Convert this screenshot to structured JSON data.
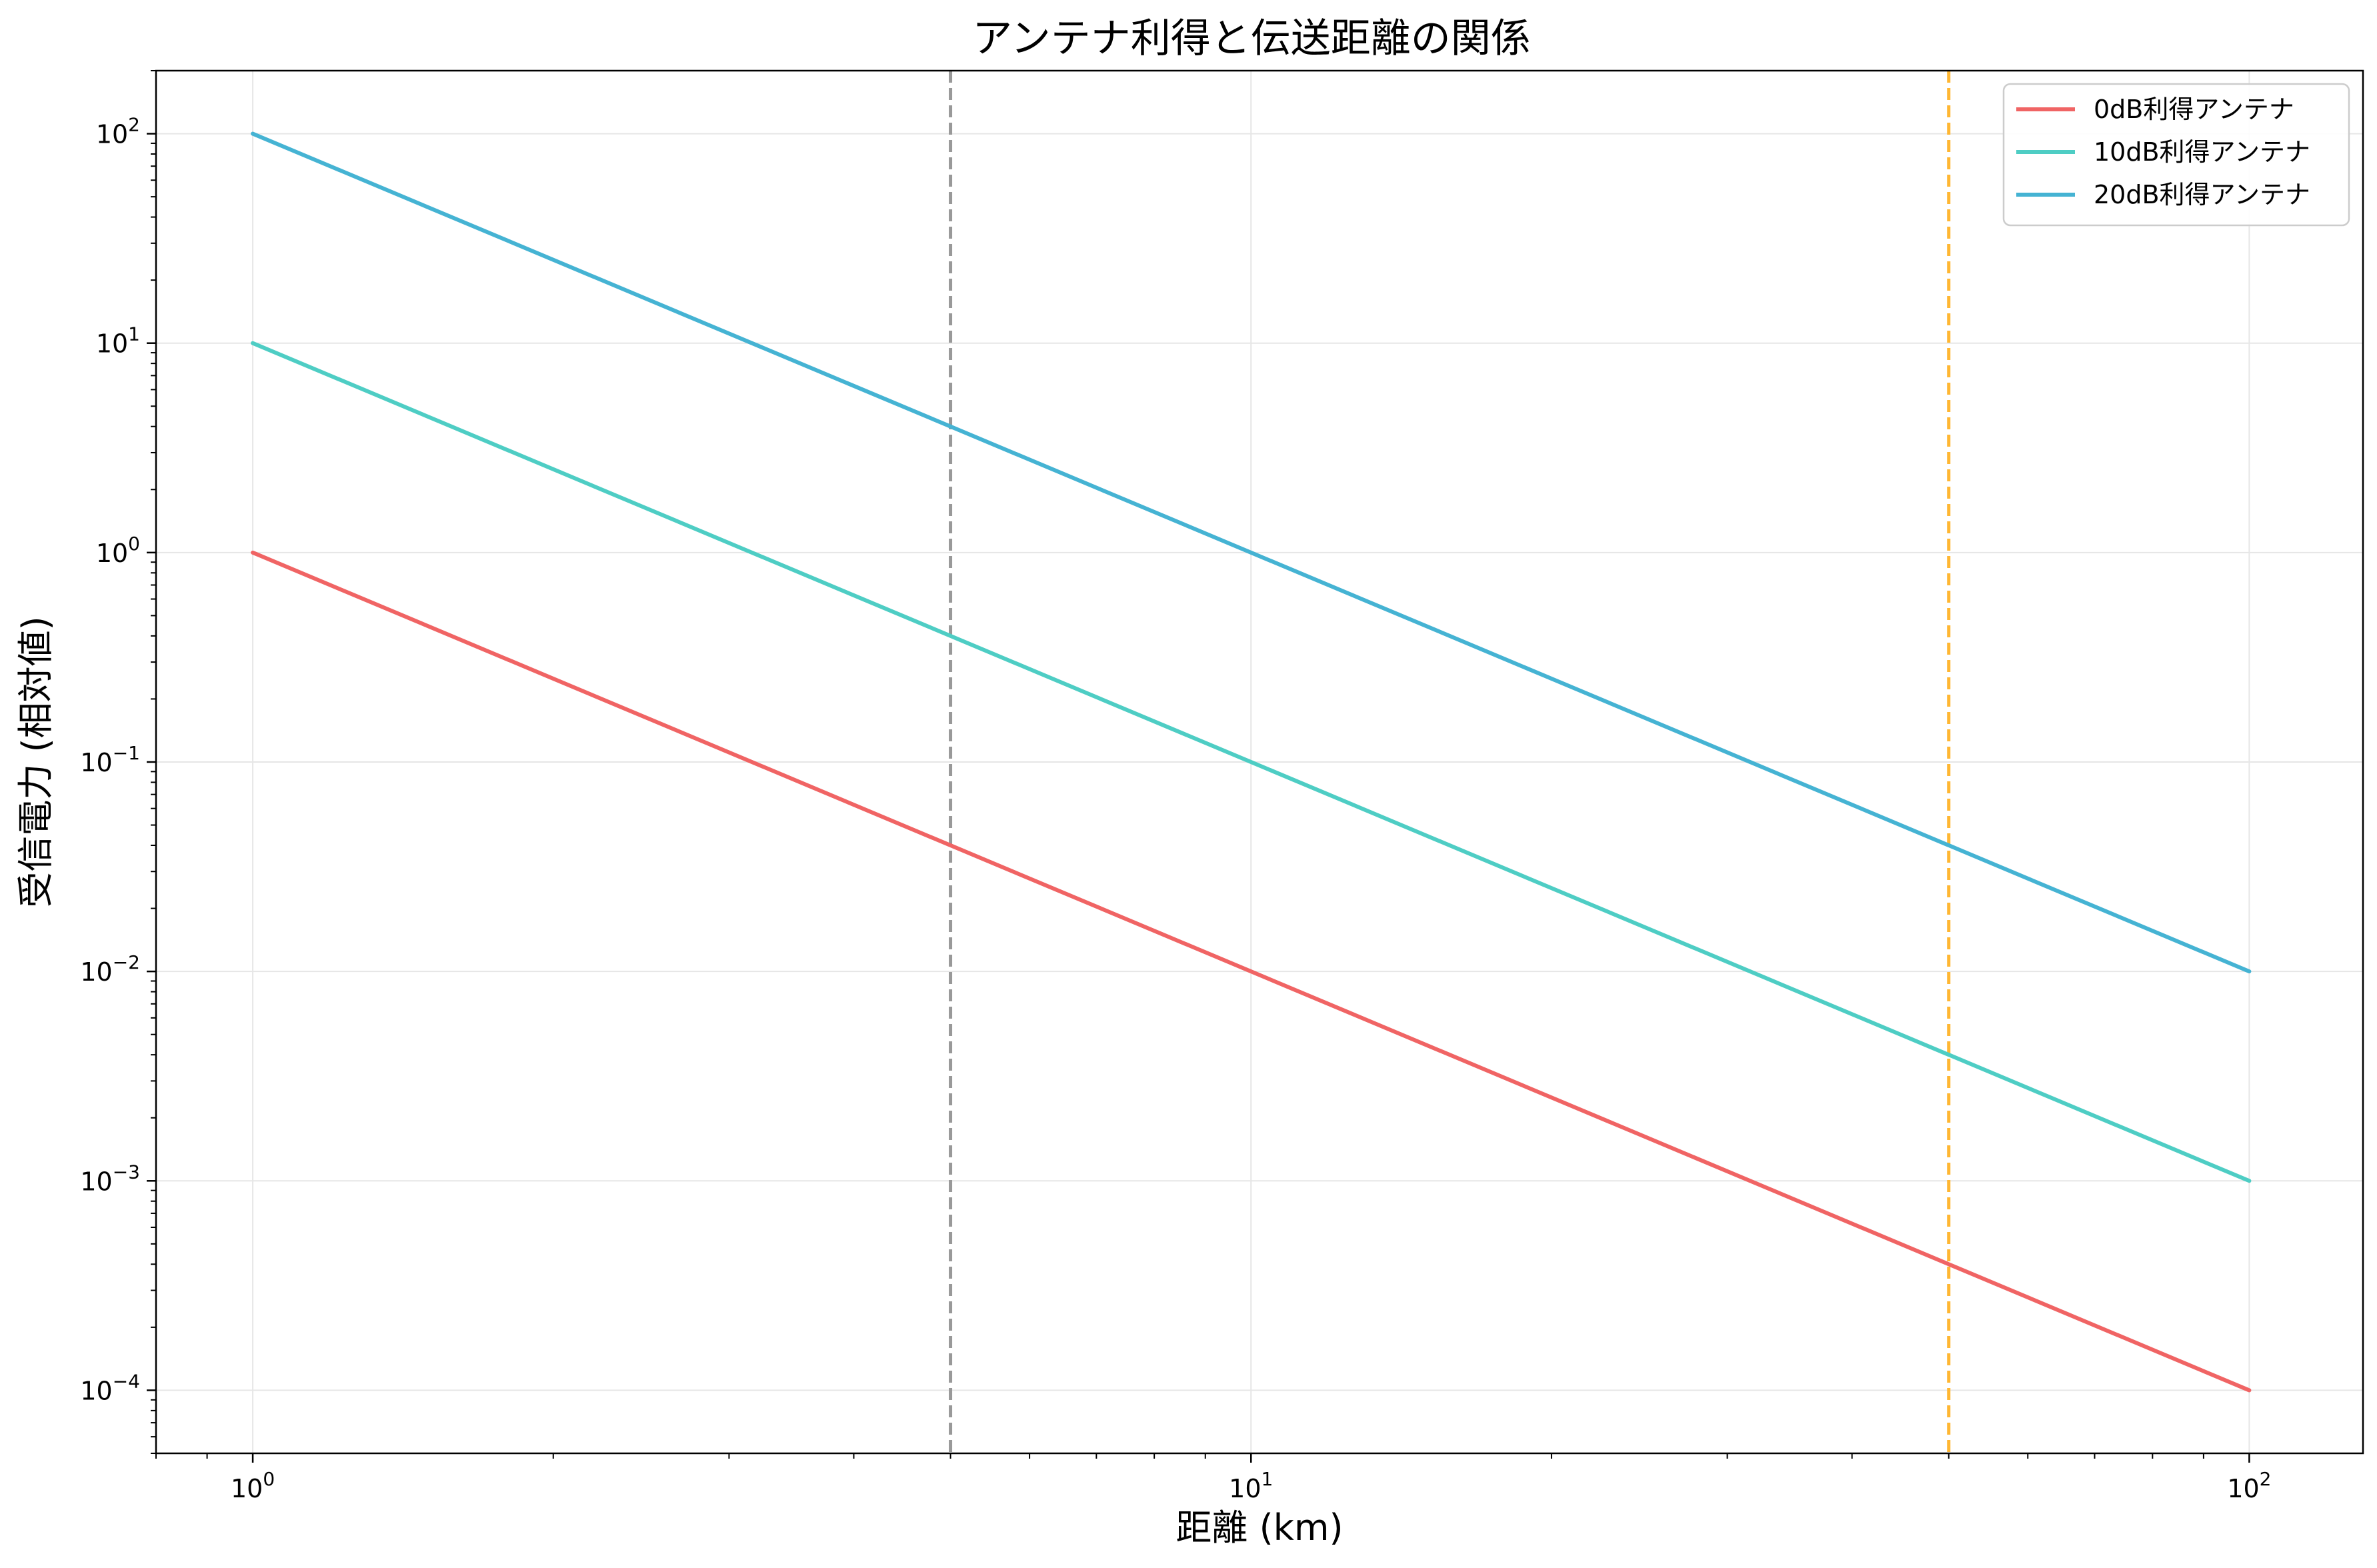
{
  "chart_data": {
    "type": "line",
    "title": "アンテナ利得と伝送距離の関係",
    "xlabel": "距離 (km)",
    "ylabel": "受信電力 (相対値)",
    "xscale": "log",
    "yscale": "log",
    "xlim": [
      0.8,
      130
    ],
    "ylim": [
      5e-05,
      200
    ],
    "grid": true,
    "legend_position": "upper right",
    "x_ticks": [
      {
        "value": 1,
        "base": "10",
        "exp": "0"
      },
      {
        "value": 10,
        "base": "10",
        "exp": "1"
      },
      {
        "value": 100,
        "base": "10",
        "exp": "2"
      }
    ],
    "y_ticks": [
      {
        "value": 0.0001,
        "base": "10",
        "exp": "−4"
      },
      {
        "value": 0.001,
        "base": "10",
        "exp": "−3"
      },
      {
        "value": 0.01,
        "base": "10",
        "exp": "−2"
      },
      {
        "value": 0.1,
        "base": "10",
        "exp": "−1"
      },
      {
        "value": 1,
        "base": "10",
        "exp": "0"
      },
      {
        "value": 10,
        "base": "10",
        "exp": "1"
      },
      {
        "value": 100,
        "base": "10",
        "exp": "2"
      }
    ],
    "series": [
      {
        "name": "0dB利得アンテナ",
        "color": "#f06464",
        "x": [
          1,
          100
        ],
        "y": [
          1,
          0.0001
        ]
      },
      {
        "name": "10dB利得アンテナ",
        "color": "#4ecdc4",
        "x": [
          1,
          100
        ],
        "y": [
          10,
          0.001
        ]
      },
      {
        "name": "20dB利得アンテナ",
        "color": "#45b3d3",
        "x": [
          1,
          100
        ],
        "y": [
          100,
          0.01
        ]
      }
    ],
    "reference_lines": [
      {
        "orientation": "vertical",
        "x": 5,
        "color": "#999999",
        "style": "dashed"
      },
      {
        "orientation": "vertical",
        "x": 50,
        "color": "#ffb733",
        "style": "dashed"
      }
    ]
  }
}
